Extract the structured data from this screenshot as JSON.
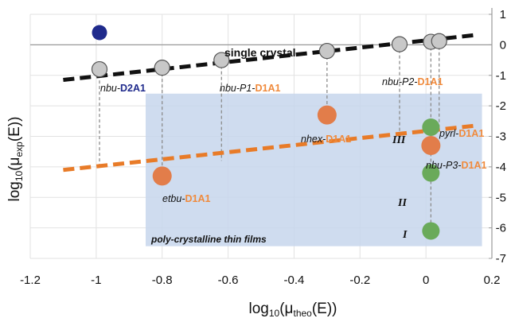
{
  "chart_data": {
    "type": "scatter",
    "xlabel": {
      "main": "log",
      "sub1": "10",
      "mid": "(μ",
      "sub2": "theo",
      "end": "(E))"
    },
    "ylabel": {
      "main": "log",
      "sub1": "10",
      "mid": "(μ",
      "sub2": "exp",
      "end": "(E))"
    },
    "xlim": [
      -1.2,
      0.2
    ],
    "ylim": [
      -7,
      1
    ],
    "x_ticks": [
      -1.2,
      -1,
      -0.8,
      -0.6,
      -0.4,
      -0.2,
      0,
      0.2
    ],
    "x_tick_labels": [
      "-1.2",
      "-1",
      "-0.8",
      "-0.6",
      "-0.4",
      "-0.2",
      "0",
      "0.2"
    ],
    "y_ticks": [
      1,
      0,
      -1,
      -2,
      -3,
      -4,
      -5,
      -6,
      -7
    ],
    "y_tick_labels": [
      "1",
      "0",
      "-1",
      "-2",
      "-3",
      "-4",
      "-5",
      "-6",
      "-7"
    ],
    "grid": true,
    "colors": {
      "d2a1": "#1f2a8c",
      "d1a1": "#f08a3c",
      "single": "#c8c8c8",
      "poly": "#e27d4a",
      "green": "#6aaa5a",
      "film_box": "#c7d6ec",
      "film_label": "#5b8ed0",
      "roman": "#999999",
      "connector": "#8c8c8c",
      "sc_line": "#111111",
      "poly_line": "#e87b28"
    },
    "series": [
      {
        "name": "single crystal",
        "points": [
          {
            "x": -0.99,
            "y": -0.8
          },
          {
            "x": -0.8,
            "y": -0.75
          },
          {
            "x": -0.62,
            "y": -0.5
          },
          {
            "x": -0.3,
            "y": -0.2
          },
          {
            "x": -0.08,
            "y": 0.02
          },
          {
            "x": 0.015,
            "y": 0.1
          },
          {
            "x": 0.04,
            "y": 0.12
          }
        ]
      },
      {
        "name": "D2A1",
        "points": [
          {
            "x": -0.99,
            "y": 0.4
          },
          {
            "x": -0.99,
            "y": -0.8
          }
        ]
      },
      {
        "name": "poly-crystalline D1A1",
        "points": [
          {
            "x": -0.8,
            "y": -4.3
          },
          {
            "x": -0.3,
            "y": -2.3
          },
          {
            "x": 0.015,
            "y": -3.3
          }
        ]
      },
      {
        "name": "green",
        "points": [
          {
            "x": 0.015,
            "y": -2.7
          },
          {
            "x": 0.015,
            "y": -4.2
          },
          {
            "x": 0.015,
            "y": -6.1
          }
        ]
      }
    ],
    "connectors": [
      {
        "x": -0.99,
        "y1": -0.8,
        "y2": -4.0
      },
      {
        "x": -0.8,
        "y1": -0.75,
        "y2": -4.3
      },
      {
        "x": -0.62,
        "y1": -0.5,
        "y2": -3.8
      },
      {
        "x": -0.3,
        "y1": -0.2,
        "y2": -2.3
      },
      {
        "x": -0.08,
        "y1": 0.02,
        "y2": -3.0
      },
      {
        "x": 0.015,
        "y1": 0.1,
        "y2": -6.1
      },
      {
        "x": 0.04,
        "y1": 0.12,
        "y2": -2.7
      }
    ],
    "fit_single": {
      "x1": -1.1,
      "y1": -1.15,
      "x2": 0.15,
      "y2": 0.32
    },
    "fit_poly": {
      "x1": -1.1,
      "y1": -4.1,
      "x2": 0.15,
      "y2": -2.65
    },
    "film_region": {
      "x1": -0.85,
      "x2": 0.17,
      "y1": -6.6,
      "y2": -1.6
    },
    "annotations": {
      "single_crystal": "single crystal",
      "poly_films": "poly-crystalline thin films",
      "nbu_d2a1": {
        "prefix": "nbu-",
        "suffix": "D2A1"
      },
      "nbu_p1": {
        "prefix": "nbu-P1-",
        "suffix": "D1A1"
      },
      "nbu_p2": {
        "prefix": "nbu-P2-",
        "suffix": "D1A1"
      },
      "nhex": {
        "prefix": "nhex-",
        "suffix": "D1A1"
      },
      "pyrl": {
        "prefix": "pyrl-",
        "suffix": "D1A1"
      },
      "nbu_p3": {
        "prefix": "nbu-P3-",
        "suffix": "D1A1"
      },
      "etbu": {
        "prefix": "etbu-",
        "suffix": "D1A1"
      },
      "roman": [
        "III",
        "II",
        "I"
      ]
    }
  }
}
